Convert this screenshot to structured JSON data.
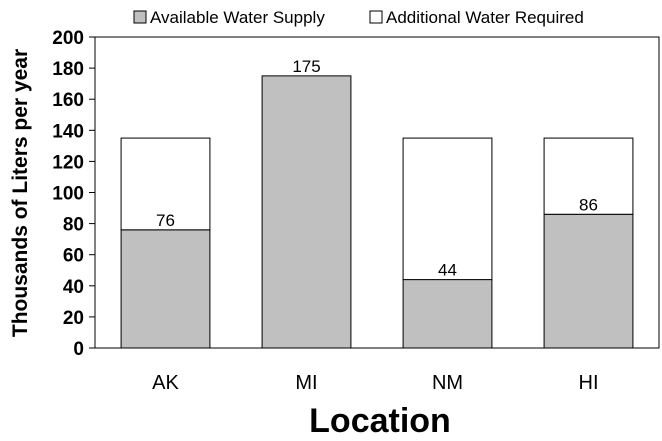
{
  "colors": {
    "available": "#c0c0c0",
    "additional": "#ffffff",
    "stroke": "#000000"
  },
  "chart_data": {
    "type": "bar",
    "stacked": true,
    "categories": [
      "AK",
      "MI",
      "NM",
      "HI"
    ],
    "series": [
      {
        "name": "Available Water Supply",
        "values": [
          76,
          175,
          44,
          86
        ]
      },
      {
        "name": "Additional Water Required",
        "values": [
          59,
          0,
          91,
          49
        ]
      }
    ],
    "data_labels": [
      "76",
      "175",
      "44",
      "86"
    ],
    "xlabel": "Location",
    "ylabel": "Thousands of Liters per year",
    "ylim": [
      0,
      200
    ],
    "yticks": [
      0,
      20,
      40,
      60,
      80,
      100,
      120,
      140,
      160,
      180,
      200
    ],
    "grid": false,
    "legend_position": "top"
  }
}
